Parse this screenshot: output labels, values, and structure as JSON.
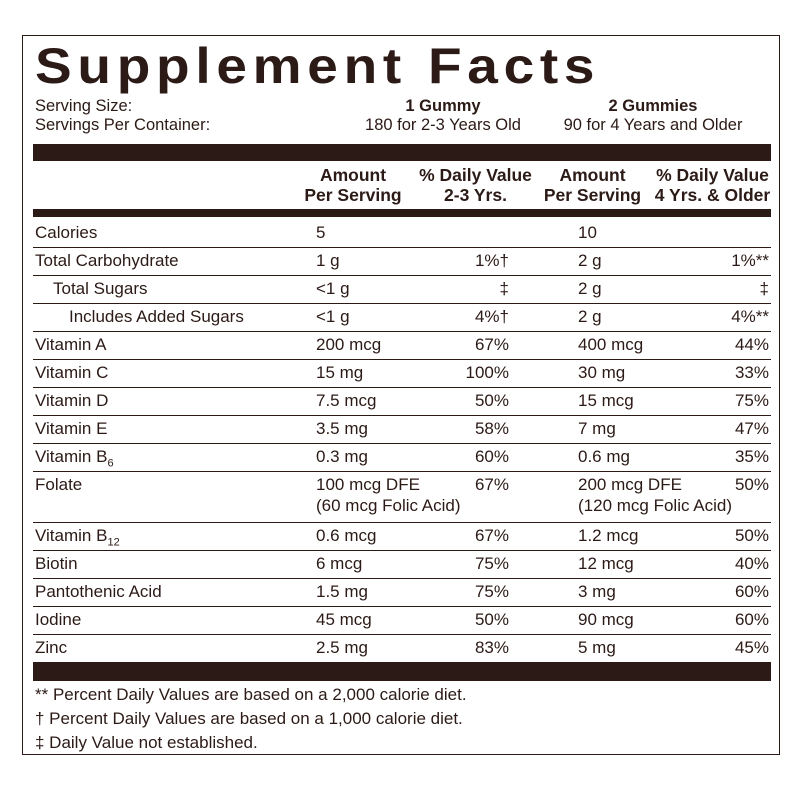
{
  "title": "Supplement Facts",
  "serving": {
    "rows": [
      [
        "Serving Size:",
        "1 Gummy",
        "2 Gummies"
      ],
      [
        "Servings Per Container:",
        "180 for 2-3 Years Old",
        "90 for 4 Years and Older"
      ]
    ]
  },
  "header": [
    [
      "Amount",
      "Per Serving"
    ],
    [
      "% Daily Value",
      "2-3 Yrs."
    ],
    [
      "Amount",
      "Per Serving"
    ],
    [
      "% Daily Value",
      "4 Yrs. & Older"
    ]
  ],
  "rows": [
    {
      "name": "Calories",
      "level": 0,
      "cells": [
        "5",
        "",
        "10",
        ""
      ]
    },
    {
      "name": "Total Carbohydrate",
      "level": 0,
      "cells": [
        "1 g",
        "1%†",
        "2 g",
        "1%**"
      ]
    },
    {
      "name": "Total Sugars",
      "level": 1,
      "cells": [
        "<1 g",
        "‡",
        "2 g",
        "‡"
      ]
    },
    {
      "name": "Includes Added Sugars",
      "level": 2,
      "cells": [
        "<1 g",
        "4%†",
        "2 g",
        "4%**"
      ]
    },
    {
      "name": "Vitamin A",
      "level": 0,
      "cells": [
        "200 mcg",
        "67%",
        "400 mcg",
        "44%"
      ]
    },
    {
      "name": "Vitamin C",
      "level": 0,
      "cells": [
        "15 mg",
        "100%",
        "30 mg",
        "33%"
      ]
    },
    {
      "name": "Vitamin D",
      "level": 0,
      "cells": [
        "7.5 mcg",
        "50%",
        "15 mcg",
        "75%"
      ]
    },
    {
      "name": "Vitamin E",
      "level": 0,
      "cells": [
        "3.5 mg",
        "58%",
        "7 mg",
        "47%"
      ]
    },
    {
      "name": "Vitamin B",
      "sub": "6",
      "level": 0,
      "cells": [
        "0.3 mg",
        "60%",
        "0.6 mg",
        "35%"
      ]
    },
    {
      "name": "Folate",
      "level": 0,
      "cells": [
        "100 mcg DFE",
        "67%",
        "200 mcg DFE",
        "50%"
      ],
      "notes": [
        "(60 mcg Folic Acid)",
        "(120 mcg Folic Acid)"
      ]
    },
    {
      "name": "Vitamin B",
      "sub": "12",
      "level": 0,
      "cells": [
        "0.6 mcg",
        "67%",
        "1.2 mcg",
        "50%"
      ]
    },
    {
      "name": "Biotin",
      "level": 0,
      "cells": [
        "6 mcg",
        "75%",
        "12 mcg",
        "40%"
      ]
    },
    {
      "name": "Pantothenic Acid",
      "level": 0,
      "cells": [
        "1.5 mg",
        "75%",
        "3 mg",
        "60%"
      ]
    },
    {
      "name": "Iodine",
      "level": 0,
      "cells": [
        "45 mcg",
        "50%",
        "90 mcg",
        "60%"
      ]
    },
    {
      "name": "Zinc",
      "level": 0,
      "cells": [
        "2.5 mg",
        "83%",
        "5 mg",
        "45%"
      ]
    }
  ],
  "footnotes": [
    "** Percent Daily Values are based on a 2,000 calorie diet.",
    "† Percent Daily Values are based on a 1,000 calorie diet.",
    "‡ Daily Value not established."
  ]
}
